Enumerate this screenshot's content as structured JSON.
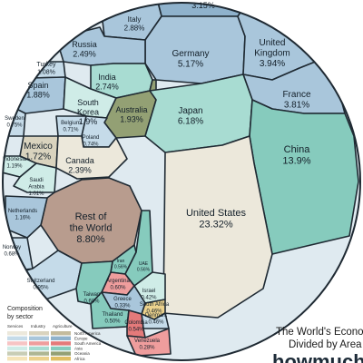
{
  "chart_data": {
    "type": "voronoi-treemap",
    "title_lines": [
      "The World's Econo",
      "Divided by Area"
    ],
    "brand": "howmuch",
    "legend": {
      "title_lines": [
        "Composition",
        "by sector"
      ],
      "columns": [
        "Services",
        "Industry",
        "Agriculture"
      ],
      "regions": [
        "North America",
        "Europe",
        "South America",
        "Asia",
        "Oceania",
        "Africa"
      ]
    },
    "cells": [
      {
        "name": "",
        "value": "3.15%",
        "region": "Europe"
      },
      {
        "name": "Italy",
        "value": "2.88%",
        "region": "Europe"
      },
      {
        "name": "Germany",
        "value": "5.17%",
        "region": "Europe"
      },
      {
        "name": "United Kingdom",
        "value": "3.94%",
        "region": "Europe"
      },
      {
        "name": "Russia",
        "value": "2.49%",
        "region": "Europe"
      },
      {
        "name": "Turkey",
        "value": "1.08%",
        "region": "Europe"
      },
      {
        "name": "Spain",
        "value": "1.88%",
        "region": "Europe"
      },
      {
        "name": "India",
        "value": "2.74%",
        "region": "Asia"
      },
      {
        "name": "France",
        "value": "3.81%",
        "region": "Europe"
      },
      {
        "name": "South Korea",
        "value": "1.9%",
        "region": "Asia"
      },
      {
        "name": "Australia",
        "value": "1.93%",
        "region": "Oceania"
      },
      {
        "name": "Japan",
        "value": "6.18%",
        "region": "Asia"
      },
      {
        "name": "Sweden",
        "value": "0.75%",
        "region": "Europe"
      },
      {
        "name": "Belgium",
        "value": "0.71%",
        "region": "Europe"
      },
      {
        "name": "Poland",
        "value": "0.74%",
        "region": "Europe"
      },
      {
        "name": "China",
        "value": "13.9%",
        "region": "Asia"
      },
      {
        "name": "Mexico",
        "value": "1.72%",
        "region": "North America"
      },
      {
        "name": "Indonesia",
        "value": "1.19%",
        "region": "Asia"
      },
      {
        "name": "Canada",
        "value": "2.39%",
        "region": "North America"
      },
      {
        "name": "Saudi Arabia",
        "value": "1.01%",
        "region": "Asia"
      },
      {
        "name": "Rest of the World",
        "value": "8.80%",
        "region": "Other"
      },
      {
        "name": "United States",
        "value": "23.32%",
        "region": "North America"
      },
      {
        "name": "Netherlands",
        "value": "1.16%",
        "region": "Europe"
      },
      {
        "name": "Norway",
        "value": "0.68%",
        "region": "Europe"
      },
      {
        "name": "Iran",
        "value": "0.56%",
        "region": "Asia"
      },
      {
        "name": "UAE",
        "value": "0.56%",
        "region": "Asia"
      },
      {
        "name": "Switzerland",
        "value": "0.95%",
        "region": "Europe"
      },
      {
        "name": "Argentina",
        "value": "0.60%",
        "region": "South America"
      },
      {
        "name": "Israel",
        "value": "0.42%",
        "region": "Asia"
      },
      {
        "name": "South Africa",
        "value": "0.46%",
        "region": "Africa"
      },
      {
        "name": "Taiwan",
        "value": "0.68%",
        "region": "Asia"
      },
      {
        "name": "Greece",
        "value": "0.33%",
        "region": "Europe"
      },
      {
        "name": "Denmark",
        "value": "0.46%",
        "region": "Europe"
      },
      {
        "name": "Thailand",
        "value": "0.50%",
        "region": "Asia"
      },
      {
        "name": "Colombia",
        "value": "0.54%",
        "region": "South America"
      },
      {
        "name": "Venezuela",
        "value": "0.28%",
        "region": "South America"
      }
    ]
  },
  "colors": {
    "North America": [
      "#ece8db",
      "#d9d3be",
      "#c4bb9d"
    ],
    "Europe": [
      "#c5dbe9",
      "#a9c6db",
      "#8fb2cc"
    ],
    "South America": [
      "#f7c4c4",
      "#ef9d9d",
      "#e47a7a"
    ],
    "Asia": [
      "#cfece7",
      "#a8dcd2",
      "#86cbbd"
    ],
    "Oceania": [
      "#c8cdb5",
      "#aeb693",
      "#93a074"
    ],
    "Africa": [
      "#f5e4b8",
      "#ecd28d",
      "#e0bf63"
    ],
    "Other": [
      "#b89c8e",
      "#a78a7c",
      "#947565"
    ],
    "border": "#1f2a33"
  }
}
